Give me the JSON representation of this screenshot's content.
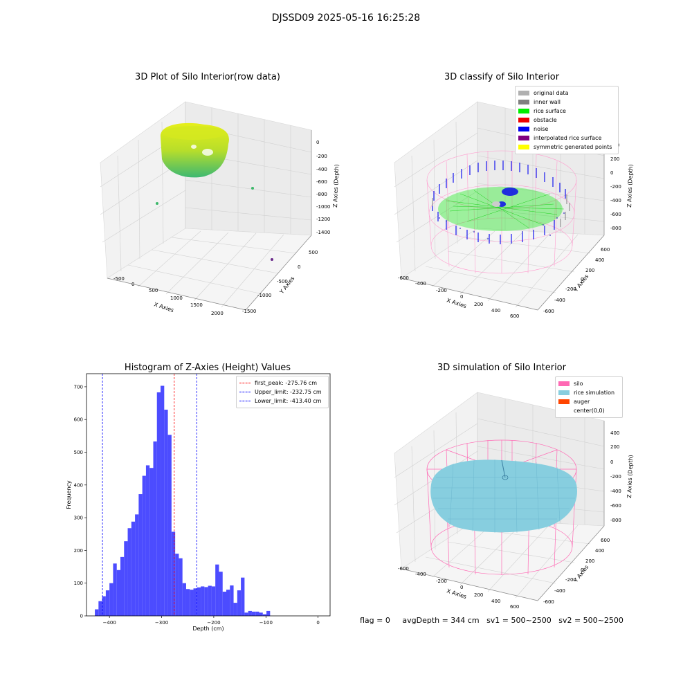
{
  "figure": {
    "suptitle": "DJSSD09 2025-05-16 16:25:28"
  },
  "colors": {
    "original_data": "#b0b0b0",
    "inner_wall": "#808080",
    "rice_surface": "#00ee00",
    "obstacle": "#ee0000",
    "noise": "#0000ee",
    "interpolated": "#800080",
    "symmetric": "#ffff00",
    "hist_bar": "#4c4cff",
    "silo": "#ff69b4",
    "rice_sim": "#87cedf",
    "auger": "#ff4500"
  },
  "plot1": {
    "title": "3D Plot of Silo Interior(row data)",
    "xlabel": "X Axies",
    "ylabel": "Y Axies",
    "zlabel": "Z Axies (Depth)",
    "xticks": [
      "-500",
      "0",
      "500",
      "1000",
      "1500",
      "2000"
    ],
    "yticks": [
      "500",
      "0",
      "-500",
      "-1000",
      "-1500"
    ],
    "zticks": [
      "0",
      "-200",
      "-400",
      "-600",
      "-800",
      "-1000",
      "-1200",
      "-1400"
    ]
  },
  "plot2": {
    "title": "3D classify of Silo Interior",
    "xlabel": "X Axies",
    "ylabel": "Y Axies",
    "zlabel": "Z Axies (Depth)",
    "xticks": [
      "-600",
      "-400",
      "-200",
      "0",
      "200",
      "400",
      "600"
    ],
    "yticks": [
      "600",
      "400",
      "200",
      "0",
      "-200",
      "-400",
      "-600"
    ],
    "zticks": [
      "400",
      "200",
      "0",
      "-200",
      "-400",
      "-600",
      "-800"
    ],
    "legend": [
      {
        "label": "original data",
        "color_key": "original_data"
      },
      {
        "label": "inner wall",
        "color_key": "inner_wall"
      },
      {
        "label": "rice surface",
        "color_key": "rice_surface"
      },
      {
        "label": "obstacle",
        "color_key": "obstacle"
      },
      {
        "label": "noise",
        "color_key": "noise"
      },
      {
        "label": "interpolated rice surface",
        "color_key": "interpolated"
      },
      {
        "label": "symmetric generated points",
        "color_key": "symmetric"
      }
    ]
  },
  "plot4": {
    "title": "3D simulation of Silo Interior",
    "xlabel": "X Axies",
    "ylabel": "Y Axies",
    "zlabel": "Z Axies (Depth)",
    "xticks": [
      "-600",
      "-400",
      "-200",
      "0",
      "200",
      "400",
      "600"
    ],
    "yticks": [
      "600",
      "400",
      "200",
      "0",
      "-200",
      "-400",
      "-600"
    ],
    "zticks": [
      "400",
      "200",
      "0",
      "-200",
      "-400",
      "-600",
      "-800"
    ],
    "legend": [
      {
        "label": "silo",
        "color_key": "silo"
      },
      {
        "label": "rice simulation",
        "color_key": "rice_sim"
      },
      {
        "label": "auger",
        "color_key": "auger"
      },
      {
        "label": "center(0,0)",
        "color_key": ""
      }
    ]
  },
  "stats": {
    "flag": "flag = 0",
    "avg_depth": "avgDepth = 344 cm",
    "sv1": "sv1 = 500~2500",
    "sv2": "sv2 = 500~2500"
  },
  "chart_data": [
    {
      "type": "histogram",
      "title": "Histogram of Z-Axies (Height) Values",
      "xlabel": "Depth (cm)",
      "ylabel": "Frequency",
      "xlim": [
        -444,
        23
      ],
      "ylim": [
        0,
        740
      ],
      "xticks": [
        -400,
        -300,
        -200,
        -100,
        0
      ],
      "yticks": [
        0,
        100,
        200,
        300,
        400,
        500,
        600,
        700
      ],
      "bin_start": -428,
      "bin_width": 7.0,
      "counts": [
        20,
        45,
        60,
        78,
        100,
        160,
        140,
        180,
        228,
        268,
        288,
        310,
        372,
        428,
        460,
        452,
        533,
        683,
        703,
        630,
        553,
        257,
        190,
        176,
        100,
        82,
        80,
        84,
        87,
        90,
        88,
        92,
        90,
        157,
        135,
        74,
        80,
        93,
        40,
        78,
        117,
        10,
        15,
        13,
        13,
        10,
        5,
        15
      ],
      "vlines": [
        {
          "label": "first_peak: -275.76 cm",
          "x": -275.76,
          "color": "#ff0000"
        },
        {
          "label": "Upper_limit: -232.75 cm",
          "x": -232.75,
          "color": "#0000ff"
        },
        {
          "label": "Lower_limit: -413.40 cm",
          "x": -413.4,
          "color": "#0000ff"
        }
      ],
      "legend_position": "upper right"
    }
  ]
}
